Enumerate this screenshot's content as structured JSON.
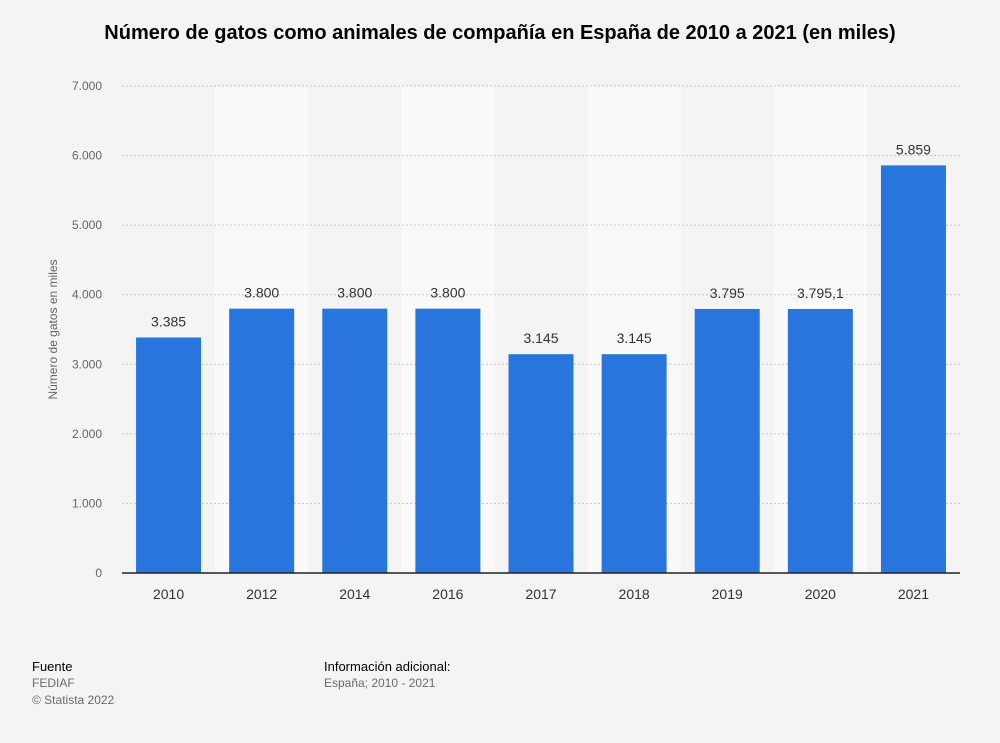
{
  "title": "Número de gatos como animales de compañía en España de 2010 a 2021 (en miles)",
  "chart_data": {
    "type": "bar",
    "title": "Número de gatos como animales de compañía en España de 2010 a 2021 (en miles)",
    "categories": [
      "2010",
      "2012",
      "2014",
      "2016",
      "2017",
      "2018",
      "2019",
      "2020",
      "2021"
    ],
    "values": [
      3385,
      3800,
      3800,
      3800,
      3145,
      3145,
      3795,
      3795.1,
      5859
    ],
    "data_labels": [
      "3.385",
      "3.800",
      "3.800",
      "3.800",
      "3.145",
      "3.145",
      "3.795",
      "3.795,1",
      "5.859"
    ],
    "xlabel": "",
    "ylabel": "Número de gatos en miles",
    "ylim": [
      0,
      7000
    ],
    "yticks": [
      0,
      1000,
      2000,
      3000,
      4000,
      5000,
      6000,
      7000
    ],
    "ytick_labels": [
      "0",
      "1.000",
      "2.000",
      "3.000",
      "4.000",
      "5.000",
      "6.000",
      "7.000"
    ],
    "grid": true,
    "bar_color": "#2876dd"
  },
  "footer": {
    "source_heading": "Fuente",
    "source_name": "FEDIAF",
    "copyright": "© Statista 2022",
    "info_heading": "Información adicional:",
    "info_text": "España; 2010 - 2021"
  }
}
